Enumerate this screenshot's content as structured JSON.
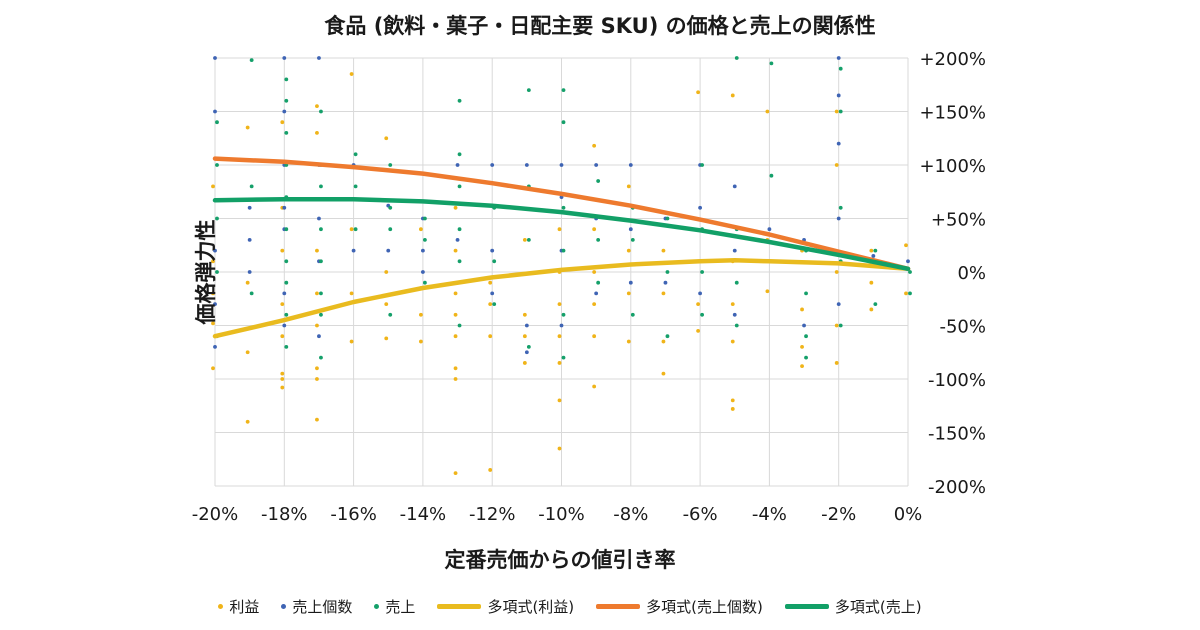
{
  "colors": {
    "profit": "#f0b419",
    "units": "#3f64b4",
    "sales": "#15a06a",
    "poly_profit": "#e9bb1f",
    "poly_units": "#ee7a2e",
    "poly_sales": "#12a067",
    "grid": "#d9d9d9"
  },
  "chart_data": {
    "type": "scatter",
    "title": "食品 (飲料・菓子・日配主要 SKU) の価格と売上の関係性",
    "xlabel": "定番売価からの値引き率",
    "ylabel": "価格弾力性",
    "xlim": [
      -20,
      0
    ],
    "ylim": [
      -200,
      200
    ],
    "x_ticks": [
      -20,
      -18,
      -16,
      -14,
      -12,
      -10,
      -8,
      -6,
      -4,
      -2,
      0
    ],
    "x_tick_labels": [
      "-20%",
      "-18%",
      "-16%",
      "-14%",
      "-12%",
      "-10%",
      "-8%",
      "-6%",
      "-4%",
      "-2%",
      "0%"
    ],
    "y_ticks": [
      200,
      150,
      100,
      50,
      0,
      -50,
      -100,
      -150,
      -200
    ],
    "y_tick_labels": [
      "+200%",
      "+150%",
      "+100%",
      "+50%",
      "0%",
      "-50%",
      "-100%",
      "-150%",
      "-200%"
    ],
    "grid": true,
    "legend_position": "bottom",
    "legend": [
      {
        "label": "利益",
        "kind": "marker",
        "color_key": "profit"
      },
      {
        "label": "売上個数",
        "kind": "marker",
        "color_key": "units"
      },
      {
        "label": "売上",
        "kind": "marker",
        "color_key": "sales"
      },
      {
        "label": "多項式(利益)",
        "kind": "line",
        "color_key": "poly_profit"
      },
      {
        "label": "多項式(売上個数)",
        "kind": "line",
        "color_key": "poly_units"
      },
      {
        "label": "多項式(売上)",
        "kind": "line",
        "color_key": "poly_sales"
      }
    ],
    "series": [
      {
        "name": "利益",
        "kind": "scatter",
        "color_key": "profit",
        "points": [
          [
            -20,
            -90
          ],
          [
            -20,
            -48
          ],
          [
            -20,
            -20
          ],
          [
            -20,
            10
          ],
          [
            -20,
            80
          ],
          [
            -19,
            -140
          ],
          [
            -19,
            -75
          ],
          [
            -19,
            135
          ],
          [
            -19,
            -10
          ],
          [
            -18,
            -108
          ],
          [
            -18,
            -100
          ],
          [
            -18,
            -95
          ],
          [
            -18,
            -60
          ],
          [
            -18,
            -30
          ],
          [
            -18,
            20
          ],
          [
            -18,
            60
          ],
          [
            -18,
            140
          ],
          [
            -17,
            -138
          ],
          [
            -17,
            -100
          ],
          [
            -17,
            -90
          ],
          [
            -17,
            -50
          ],
          [
            -17,
            -20
          ],
          [
            -17,
            20
          ],
          [
            -17,
            130
          ],
          [
            -17,
            155
          ],
          [
            -16,
            -65
          ],
          [
            -16,
            -20
          ],
          [
            -16,
            185
          ],
          [
            -16,
            40
          ],
          [
            -15,
            -62
          ],
          [
            -15,
            -30
          ],
          [
            -15,
            0
          ],
          [
            -15,
            125
          ],
          [
            -14,
            -65
          ],
          [
            -14,
            -40
          ],
          [
            -14,
            -15
          ],
          [
            -14,
            40
          ],
          [
            -13,
            -188
          ],
          [
            -13,
            -100
          ],
          [
            -13,
            -90
          ],
          [
            -13,
            -60
          ],
          [
            -13,
            -40
          ],
          [
            -13,
            -20
          ],
          [
            -13,
            20
          ],
          [
            -13,
            60
          ],
          [
            -12,
            -185
          ],
          [
            -12,
            -60
          ],
          [
            -12,
            -30
          ],
          [
            -12,
            -10
          ],
          [
            -11,
            -85
          ],
          [
            -11,
            -60
          ],
          [
            -11,
            -40
          ],
          [
            -11,
            30
          ],
          [
            -10,
            -165
          ],
          [
            -10,
            -120
          ],
          [
            -10,
            -85
          ],
          [
            -10,
            -60
          ],
          [
            -10,
            -30
          ],
          [
            -10,
            0
          ],
          [
            -10,
            40
          ],
          [
            -9,
            -107
          ],
          [
            -9,
            -60
          ],
          [
            -9,
            -30
          ],
          [
            -9,
            0
          ],
          [
            -9,
            118
          ],
          [
            -9,
            40
          ],
          [
            -8,
            -65
          ],
          [
            -8,
            -20
          ],
          [
            -8,
            20
          ],
          [
            -8,
            80
          ],
          [
            -7,
            -95
          ],
          [
            -7,
            -65
          ],
          [
            -7,
            -20
          ],
          [
            -7,
            20
          ],
          [
            -6,
            -55
          ],
          [
            -6,
            -30
          ],
          [
            -6,
            10
          ],
          [
            -6,
            168
          ],
          [
            -5,
            -128
          ],
          [
            -5,
            -120
          ],
          [
            -5,
            -65
          ],
          [
            -5,
            -30
          ],
          [
            -5,
            10
          ],
          [
            -5,
            165
          ],
          [
            -4,
            -18
          ],
          [
            -4,
            30
          ],
          [
            -4,
            150
          ],
          [
            -3,
            -88
          ],
          [
            -3,
            -70
          ],
          [
            -3,
            -35
          ],
          [
            -3,
            20
          ],
          [
            -2,
            -85
          ],
          [
            -2,
            -50
          ],
          [
            -2,
            0
          ],
          [
            -2,
            100
          ],
          [
            -2,
            150
          ],
          [
            -1,
            -35
          ],
          [
            -1,
            -10
          ],
          [
            -1,
            20
          ],
          [
            0,
            -20
          ],
          [
            0,
            25
          ]
        ]
      },
      {
        "name": "売上個数",
        "kind": "scatter",
        "color_key": "units",
        "points": [
          [
            -20,
            200
          ],
          [
            -20,
            150
          ],
          [
            -20,
            -70
          ],
          [
            -20,
            20
          ],
          [
            -20,
            -30
          ],
          [
            -19,
            60
          ],
          [
            -19,
            30
          ],
          [
            -19,
            0
          ],
          [
            -18,
            200
          ],
          [
            -18,
            150
          ],
          [
            -18,
            100
          ],
          [
            -18,
            60
          ],
          [
            -18,
            40
          ],
          [
            -18,
            -20
          ],
          [
            -18,
            -50
          ],
          [
            -17,
            200
          ],
          [
            -17,
            100
          ],
          [
            -17,
            50
          ],
          [
            -17,
            10
          ],
          [
            -17,
            -60
          ],
          [
            -16,
            20
          ],
          [
            -16,
            100
          ],
          [
            -15,
            62
          ],
          [
            -15,
            20
          ],
          [
            -14,
            50
          ],
          [
            -14,
            20
          ],
          [
            -14,
            0
          ],
          [
            -13,
            100
          ],
          [
            -13,
            30
          ],
          [
            -13,
            -10
          ],
          [
            -12,
            100
          ],
          [
            -12,
            20
          ],
          [
            -12,
            -20
          ],
          [
            -11,
            100
          ],
          [
            -11,
            -50
          ],
          [
            -11,
            -75
          ],
          [
            -10,
            100
          ],
          [
            -10,
            70
          ],
          [
            -10,
            20
          ],
          [
            -10,
            -50
          ],
          [
            -9,
            50
          ],
          [
            -9,
            100
          ],
          [
            -9,
            -20
          ],
          [
            -8,
            100
          ],
          [
            -8,
            40
          ],
          [
            -8,
            -10
          ],
          [
            -7,
            50
          ],
          [
            -7,
            -10
          ],
          [
            -6,
            100
          ],
          [
            -6,
            60
          ],
          [
            -6,
            -20
          ],
          [
            -5,
            80
          ],
          [
            -5,
            20
          ],
          [
            -5,
            -40
          ],
          [
            -4,
            40
          ],
          [
            -3,
            30
          ],
          [
            -3,
            -50
          ],
          [
            -2,
            200
          ],
          [
            -2,
            165
          ],
          [
            -2,
            120
          ],
          [
            -2,
            50
          ],
          [
            -2,
            -30
          ],
          [
            -1,
            15
          ],
          [
            0,
            10
          ]
        ]
      },
      {
        "name": "売上",
        "kind": "scatter",
        "color_key": "sales",
        "points": [
          [
            -20,
            140
          ],
          [
            -20,
            100
          ],
          [
            -20,
            50
          ],
          [
            -20,
            0
          ],
          [
            -20,
            -60
          ],
          [
            -19,
            198
          ],
          [
            -19,
            80
          ],
          [
            -19,
            -20
          ],
          [
            -18,
            180
          ],
          [
            -18,
            160
          ],
          [
            -18,
            130
          ],
          [
            -18,
            100
          ],
          [
            -18,
            70
          ],
          [
            -18,
            40
          ],
          [
            -18,
            10
          ],
          [
            -18,
            -10
          ],
          [
            -18,
            -40
          ],
          [
            -18,
            -70
          ],
          [
            -17,
            150
          ],
          [
            -17,
            100
          ],
          [
            -17,
            80
          ],
          [
            -17,
            40
          ],
          [
            -17,
            10
          ],
          [
            -17,
            -20
          ],
          [
            -17,
            -40
          ],
          [
            -17,
            -80
          ],
          [
            -16,
            110
          ],
          [
            -16,
            80
          ],
          [
            -16,
            40
          ],
          [
            -15,
            100
          ],
          [
            -15,
            60
          ],
          [
            -15,
            40
          ],
          [
            -15,
            -40
          ],
          [
            -14,
            50
          ],
          [
            -14,
            30
          ],
          [
            -14,
            -10
          ],
          [
            -13,
            160
          ],
          [
            -13,
            110
          ],
          [
            -13,
            80
          ],
          [
            -13,
            40
          ],
          [
            -13,
            10
          ],
          [
            -13,
            -50
          ],
          [
            -12,
            60
          ],
          [
            -12,
            10
          ],
          [
            -12,
            -30
          ],
          [
            -11,
            170
          ],
          [
            -11,
            80
          ],
          [
            -11,
            30
          ],
          [
            -11,
            -70
          ],
          [
            -10,
            170
          ],
          [
            -10,
            140
          ],
          [
            -10,
            60
          ],
          [
            -10,
            20
          ],
          [
            -10,
            -40
          ],
          [
            -10,
            -80
          ],
          [
            -9,
            85
          ],
          [
            -9,
            30
          ],
          [
            -9,
            -10
          ],
          [
            -8,
            60
          ],
          [
            -8,
            30
          ],
          [
            -8,
            -40
          ],
          [
            -7,
            50
          ],
          [
            -7,
            0
          ],
          [
            -7,
            -60
          ],
          [
            -6,
            100
          ],
          [
            -6,
            40
          ],
          [
            -6,
            0
          ],
          [
            -6,
            -40
          ],
          [
            -5,
            200
          ],
          [
            -5,
            40
          ],
          [
            -5,
            -10
          ],
          [
            -5,
            -50
          ],
          [
            -4,
            195
          ],
          [
            -4,
            90
          ],
          [
            -3,
            20
          ],
          [
            -3,
            -20
          ],
          [
            -3,
            -60
          ],
          [
            -3,
            -80
          ],
          [
            -2,
            190
          ],
          [
            -2,
            150
          ],
          [
            -2,
            60
          ],
          [
            -2,
            10
          ],
          [
            -2,
            -50
          ],
          [
            -1,
            20
          ],
          [
            -1,
            -30
          ],
          [
            0,
            0
          ],
          [
            0,
            -20
          ]
        ]
      },
      {
        "name": "多項式(利益)",
        "kind": "line",
        "color_key": "poly_profit",
        "points": [
          [
            -20,
            -60
          ],
          [
            -18,
            -45
          ],
          [
            -16,
            -28
          ],
          [
            -14,
            -15
          ],
          [
            -12,
            -5
          ],
          [
            -10,
            2
          ],
          [
            -8,
            7
          ],
          [
            -6,
            10
          ],
          [
            -5,
            11
          ],
          [
            -4,
            10
          ],
          [
            -2,
            8
          ],
          [
            0,
            3
          ]
        ]
      },
      {
        "name": "多項式(売上個数)",
        "kind": "line",
        "color_key": "poly_units",
        "points": [
          [
            -20,
            106
          ],
          [
            -18,
            103
          ],
          [
            -16,
            98
          ],
          [
            -14,
            92
          ],
          [
            -12,
            83
          ],
          [
            -10,
            73
          ],
          [
            -8,
            62
          ],
          [
            -6,
            49
          ],
          [
            -4,
            35
          ],
          [
            -2,
            19
          ],
          [
            0,
            3
          ]
        ]
      },
      {
        "name": "多項式(売上)",
        "kind": "line",
        "color_key": "poly_sales",
        "points": [
          [
            -20,
            67
          ],
          [
            -18,
            68
          ],
          [
            -16,
            68
          ],
          [
            -14,
            66
          ],
          [
            -12,
            62
          ],
          [
            -10,
            56
          ],
          [
            -8,
            48
          ],
          [
            -6,
            39
          ],
          [
            -4,
            28
          ],
          [
            -2,
            16
          ],
          [
            0,
            3
          ]
        ]
      }
    ]
  }
}
